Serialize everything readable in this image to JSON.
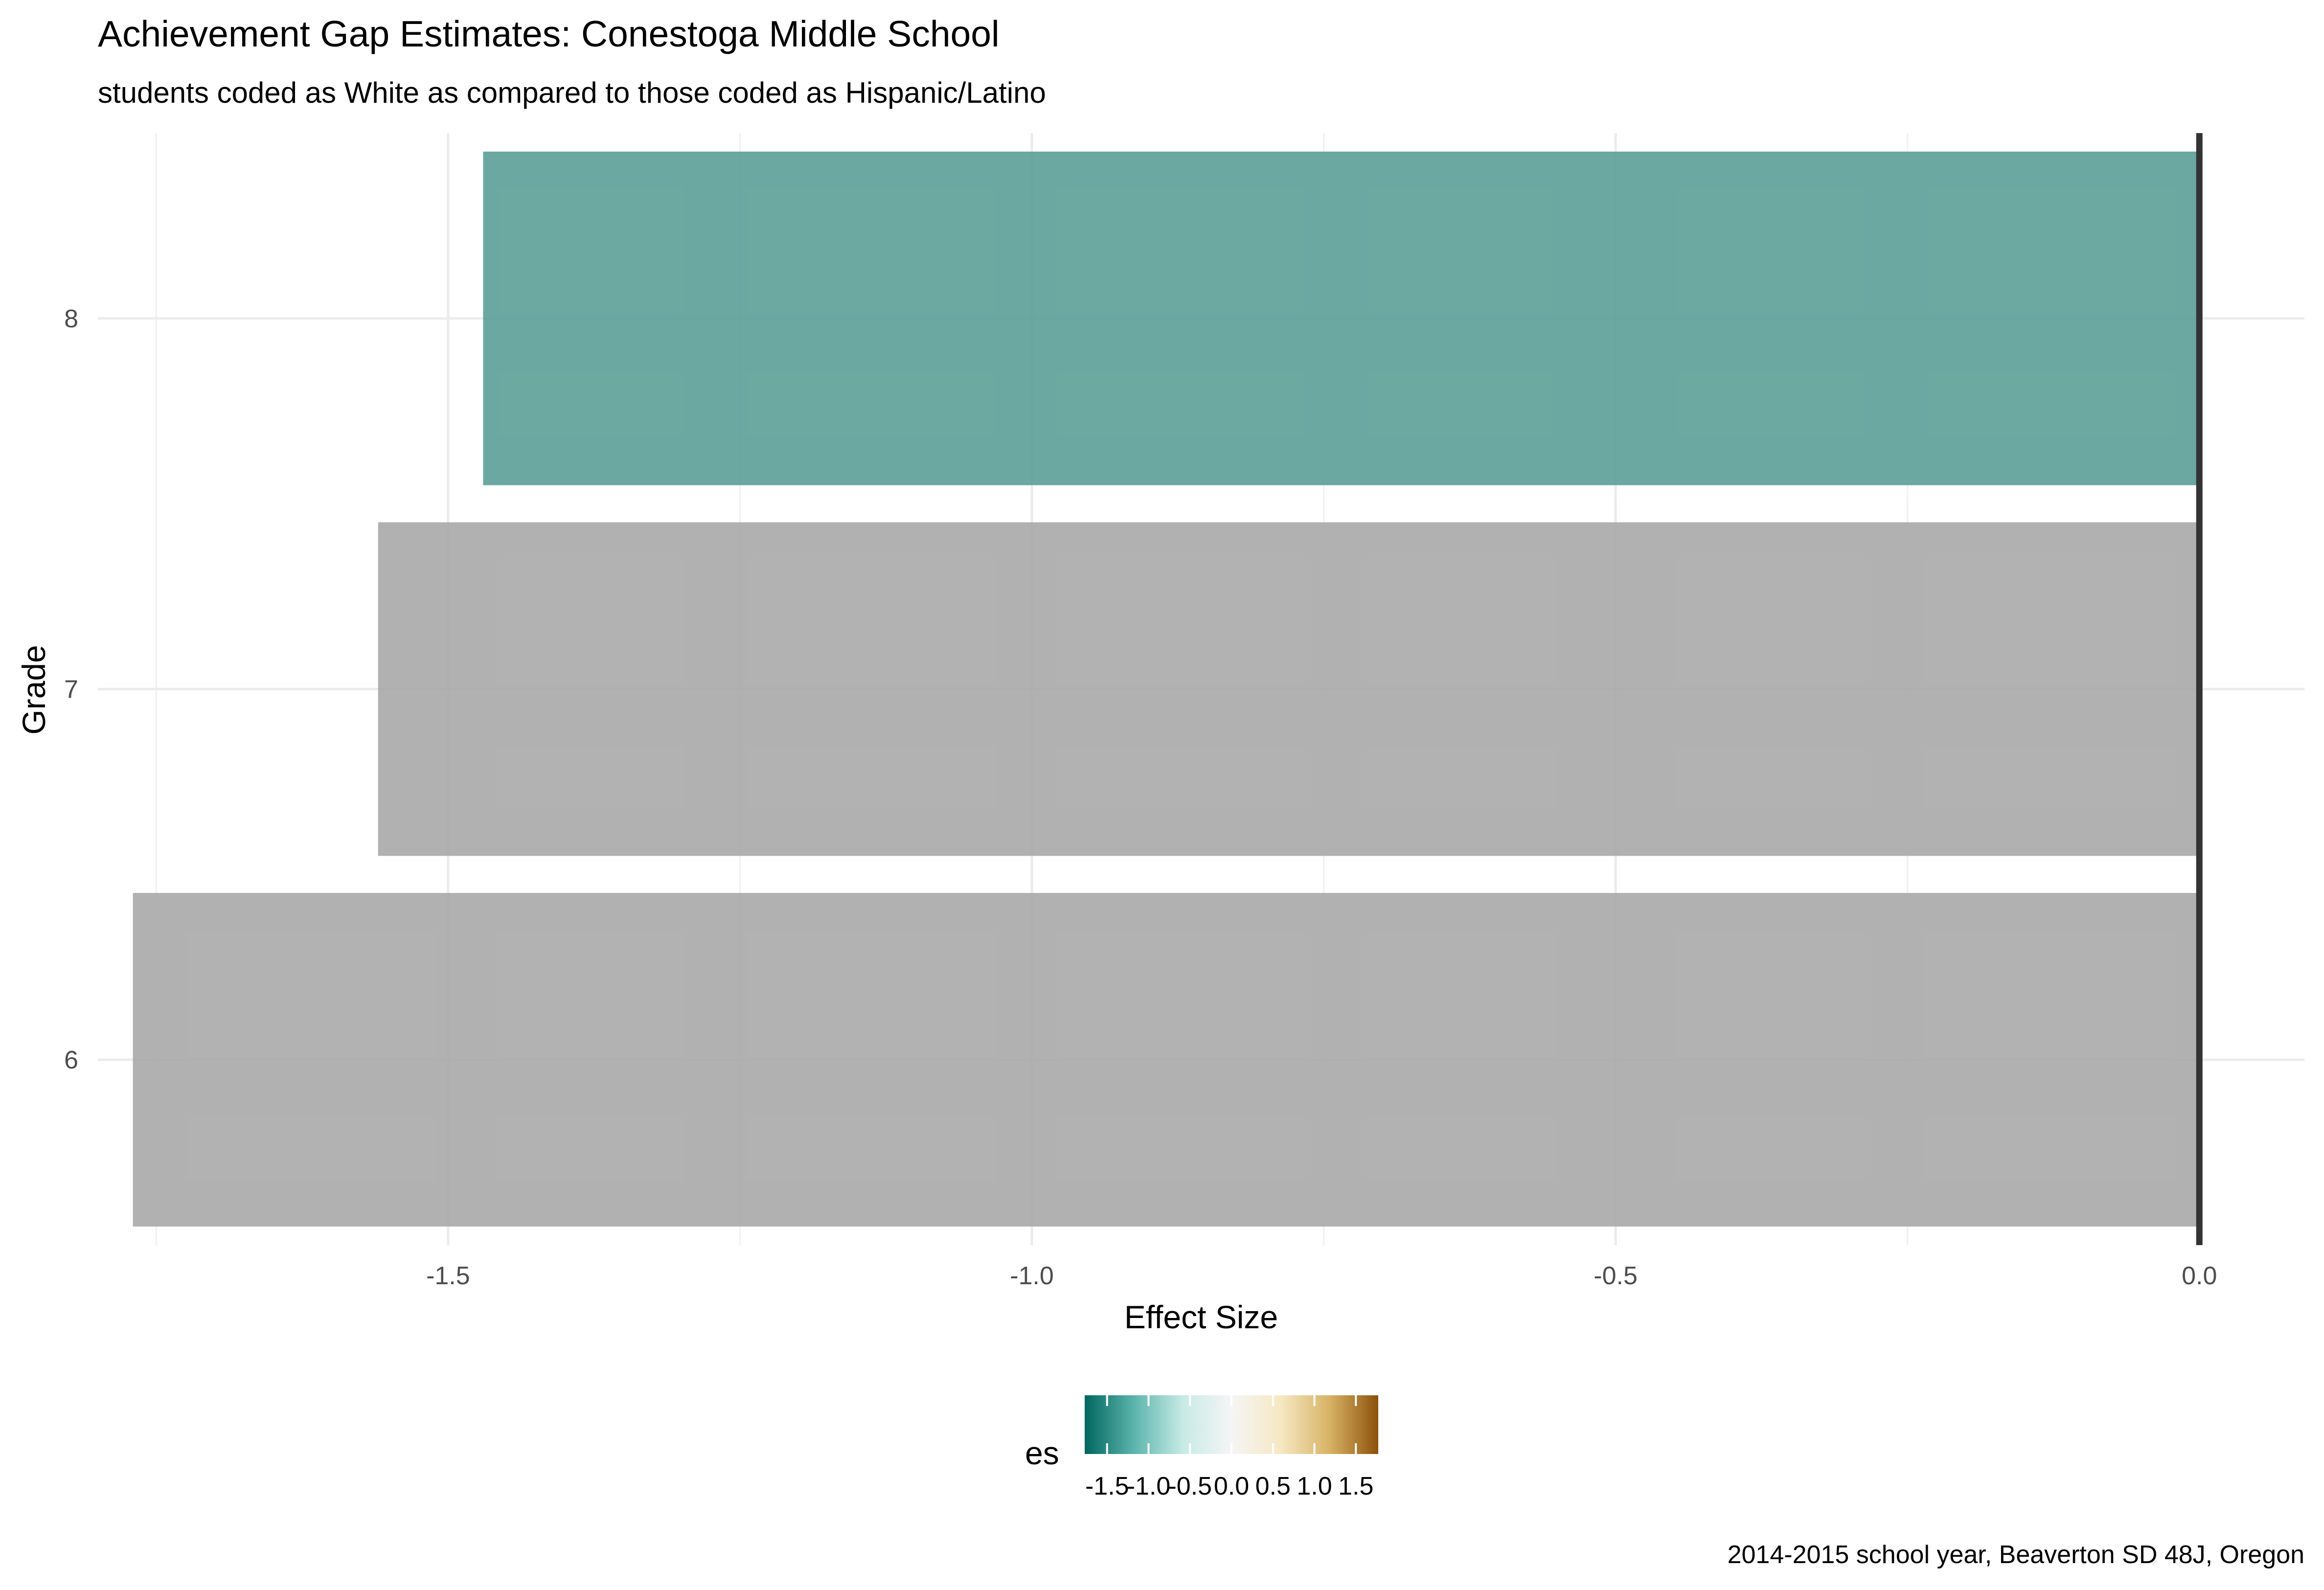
{
  "chart_data": {
    "type": "bar",
    "orientation": "horizontal",
    "title": "Achievement Gap Estimates: Conestoga Middle School",
    "subtitle": "students coded as White as compared to those coded as Hispanic/Latino",
    "caption": "2014-2015 school year, Beaverton SD 48J, Oregon",
    "xlabel": "Effect Size",
    "ylabel": "Grade",
    "categories": [
      "8",
      "7",
      "6"
    ],
    "values": [
      -1.47,
      -1.56,
      -1.77
    ],
    "bar_colors": [
      "#5a9f97",
      "#a9a9a9",
      "#a9a9a9"
    ],
    "xlim": [
      -1.8,
      0.09
    ],
    "x_ticks": [
      -1.5,
      -1.0,
      -0.5,
      0.0
    ],
    "x_tick_labels": [
      "-1.5",
      "-1.0",
      "-0.5",
      "0.0"
    ],
    "grid": true,
    "reference_line": 0,
    "legend": {
      "title": "es",
      "placement": "bottom",
      "type": "colorbar",
      "tick_labels": [
        "-1.5",
        "-1.0",
        "-0.5",
        "0.0",
        "0.5",
        "1.0",
        "1.5"
      ],
      "ticks": [
        -1.5,
        -1.0,
        -0.5,
        0.0,
        0.5,
        1.0,
        1.5
      ],
      "range": [
        -1.77,
        1.77
      ],
      "palette": [
        "#01665e",
        "#5ab4ac",
        "#c7eae5",
        "#f5f5f5",
        "#f6e8c3",
        "#d8b365",
        "#8c510a"
      ]
    }
  }
}
